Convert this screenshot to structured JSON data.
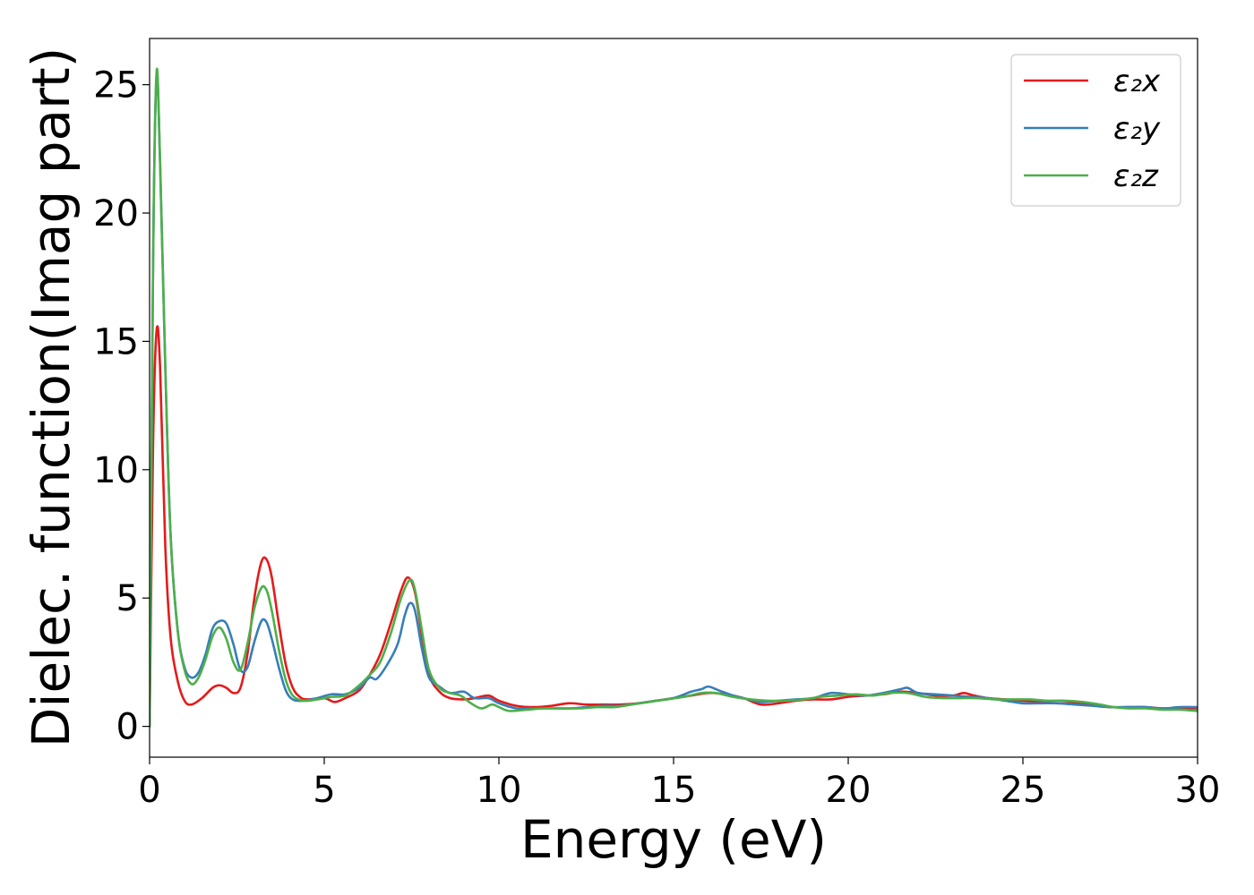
{
  "chart_data": {
    "type": "line",
    "title": "",
    "xlabel": "Energy (eV)",
    "ylabel": "Dielec. function(Imag part)",
    "xlim": [
      0,
      30
    ],
    "ylim": [
      -1.2,
      26.8
    ],
    "xticks": [
      0,
      5,
      10,
      15,
      20,
      25,
      30
    ],
    "yticks": [
      0,
      5,
      10,
      15,
      20,
      25
    ],
    "grid": false,
    "legend_position": "top-right",
    "series": [
      {
        "name": "ε₂x",
        "color": "#e41a1c",
        "points": [
          [
            0,
            0
          ],
          [
            0.1,
            11
          ],
          [
            0.2,
            15.4
          ],
          [
            0.3,
            14
          ],
          [
            0.45,
            7
          ],
          [
            0.6,
            3.5
          ],
          [
            0.8,
            1.8
          ],
          [
            1.0,
            1.0
          ],
          [
            1.2,
            0.85
          ],
          [
            1.5,
            1.1
          ],
          [
            1.8,
            1.5
          ],
          [
            2.0,
            1.6
          ],
          [
            2.2,
            1.5
          ],
          [
            2.4,
            1.3
          ],
          [
            2.6,
            1.5
          ],
          [
            2.8,
            2.8
          ],
          [
            3.0,
            5.0
          ],
          [
            3.2,
            6.4
          ],
          [
            3.35,
            6.5
          ],
          [
            3.5,
            5.8
          ],
          [
            3.7,
            4.0
          ],
          [
            3.9,
            2.4
          ],
          [
            4.1,
            1.5
          ],
          [
            4.3,
            1.15
          ],
          [
            4.5,
            1.05
          ],
          [
            5.0,
            1.1
          ],
          [
            5.3,
            0.95
          ],
          [
            5.6,
            1.1
          ],
          [
            6.0,
            1.4
          ],
          [
            6.3,
            2.0
          ],
          [
            6.6,
            2.8
          ],
          [
            6.9,
            4.0
          ],
          [
            7.2,
            5.3
          ],
          [
            7.4,
            5.8
          ],
          [
            7.6,
            5.2
          ],
          [
            7.8,
            3.5
          ],
          [
            8.0,
            2.0
          ],
          [
            8.3,
            1.35
          ],
          [
            8.6,
            1.1
          ],
          [
            9.0,
            1.05
          ],
          [
            9.3,
            1.1
          ],
          [
            9.7,
            1.2
          ],
          [
            10.0,
            1.0
          ],
          [
            10.5,
            0.8
          ],
          [
            11.0,
            0.75
          ],
          [
            11.5,
            0.8
          ],
          [
            12.0,
            0.9
          ],
          [
            12.5,
            0.85
          ],
          [
            13.0,
            0.85
          ],
          [
            13.5,
            0.85
          ],
          [
            14.0,
            0.9
          ],
          [
            14.5,
            1.0
          ],
          [
            15.0,
            1.1
          ],
          [
            15.5,
            1.2
          ],
          [
            16.0,
            1.3
          ],
          [
            16.5,
            1.25
          ],
          [
            17.0,
            1.1
          ],
          [
            17.5,
            0.85
          ],
          [
            18.0,
            0.9
          ],
          [
            18.5,
            1.0
          ],
          [
            19.0,
            1.05
          ],
          [
            19.5,
            1.05
          ],
          [
            20.0,
            1.15
          ],
          [
            20.5,
            1.2
          ],
          [
            21.0,
            1.25
          ],
          [
            21.5,
            1.35
          ],
          [
            22.0,
            1.3
          ],
          [
            22.5,
            1.2
          ],
          [
            23.0,
            1.2
          ],
          [
            23.3,
            1.3
          ],
          [
            23.6,
            1.2
          ],
          [
            24.0,
            1.1
          ],
          [
            24.5,
            1.05
          ],
          [
            25.0,
            1.0
          ],
          [
            25.5,
            0.95
          ],
          [
            26.0,
            0.9
          ],
          [
            26.5,
            0.9
          ],
          [
            27.0,
            0.85
          ],
          [
            27.5,
            0.75
          ],
          [
            28.0,
            0.75
          ],
          [
            28.5,
            0.75
          ],
          [
            29.0,
            0.7
          ],
          [
            29.5,
            0.7
          ],
          [
            30.0,
            0.7
          ]
        ]
      },
      {
        "name": "ε₂y",
        "color": "#377eb8",
        "points": [
          [
            0,
            0
          ],
          [
            0.1,
            18
          ],
          [
            0.2,
            25.3
          ],
          [
            0.3,
            22
          ],
          [
            0.45,
            14
          ],
          [
            0.6,
            7.5
          ],
          [
            0.8,
            3.8
          ],
          [
            1.0,
            2.3
          ],
          [
            1.2,
            1.9
          ],
          [
            1.4,
            2.1
          ],
          [
            1.6,
            2.8
          ],
          [
            1.8,
            3.8
          ],
          [
            2.0,
            4.1
          ],
          [
            2.2,
            4.0
          ],
          [
            2.4,
            3.2
          ],
          [
            2.6,
            2.2
          ],
          [
            2.8,
            2.3
          ],
          [
            3.0,
            3.3
          ],
          [
            3.2,
            4.1
          ],
          [
            3.35,
            4.05
          ],
          [
            3.5,
            3.4
          ],
          [
            3.7,
            2.3
          ],
          [
            3.9,
            1.4
          ],
          [
            4.1,
            1.05
          ],
          [
            4.4,
            1.0
          ],
          [
            4.8,
            1.1
          ],
          [
            5.2,
            1.25
          ],
          [
            5.6,
            1.25
          ],
          [
            6.0,
            1.5
          ],
          [
            6.3,
            1.9
          ],
          [
            6.5,
            1.85
          ],
          [
            6.8,
            2.4
          ],
          [
            7.1,
            3.2
          ],
          [
            7.3,
            4.3
          ],
          [
            7.45,
            4.8
          ],
          [
            7.6,
            4.5
          ],
          [
            7.8,
            3.0
          ],
          [
            8.0,
            1.9
          ],
          [
            8.3,
            1.55
          ],
          [
            8.6,
            1.3
          ],
          [
            9.0,
            1.35
          ],
          [
            9.3,
            1.1
          ],
          [
            9.7,
            1.1
          ],
          [
            10.0,
            0.9
          ],
          [
            10.5,
            0.7
          ],
          [
            11.0,
            0.7
          ],
          [
            11.5,
            0.7
          ],
          [
            12.0,
            0.7
          ],
          [
            12.5,
            0.75
          ],
          [
            13.0,
            0.8
          ],
          [
            13.5,
            0.8
          ],
          [
            14.0,
            0.9
          ],
          [
            14.5,
            1.0
          ],
          [
            15.0,
            1.1
          ],
          [
            15.5,
            1.35
          ],
          [
            15.8,
            1.45
          ],
          [
            16.0,
            1.55
          ],
          [
            16.3,
            1.4
          ],
          [
            16.7,
            1.2
          ],
          [
            17.0,
            1.1
          ],
          [
            17.5,
            0.95
          ],
          [
            18.0,
            1.0
          ],
          [
            18.5,
            1.05
          ],
          [
            19.0,
            1.1
          ],
          [
            19.5,
            1.3
          ],
          [
            20.0,
            1.25
          ],
          [
            20.5,
            1.2
          ],
          [
            21.0,
            1.3
          ],
          [
            21.5,
            1.45
          ],
          [
            21.7,
            1.5
          ],
          [
            22.0,
            1.3
          ],
          [
            22.5,
            1.25
          ],
          [
            23.0,
            1.2
          ],
          [
            23.5,
            1.15
          ],
          [
            24.0,
            1.1
          ],
          [
            24.5,
            1.0
          ],
          [
            25.0,
            0.9
          ],
          [
            25.5,
            0.9
          ],
          [
            26.0,
            0.9
          ],
          [
            26.5,
            0.85
          ],
          [
            27.0,
            0.8
          ],
          [
            27.5,
            0.75
          ],
          [
            28.0,
            0.75
          ],
          [
            28.5,
            0.75
          ],
          [
            29.0,
            0.7
          ],
          [
            29.5,
            0.75
          ],
          [
            30.0,
            0.75
          ]
        ]
      },
      {
        "name": "ε₂z",
        "color": "#4daf4a",
        "points": [
          [
            0,
            0
          ],
          [
            0.1,
            18
          ],
          [
            0.2,
            25.5
          ],
          [
            0.3,
            22
          ],
          [
            0.45,
            14
          ],
          [
            0.6,
            7.5
          ],
          [
            0.8,
            3.8
          ],
          [
            1.0,
            2.2
          ],
          [
            1.2,
            1.65
          ],
          [
            1.4,
            1.9
          ],
          [
            1.6,
            2.6
          ],
          [
            1.8,
            3.5
          ],
          [
            2.0,
            3.85
          ],
          [
            2.2,
            3.4
          ],
          [
            2.4,
            2.5
          ],
          [
            2.6,
            2.2
          ],
          [
            2.8,
            3.2
          ],
          [
            3.0,
            4.6
          ],
          [
            3.2,
            5.4
          ],
          [
            3.35,
            5.3
          ],
          [
            3.5,
            4.5
          ],
          [
            3.7,
            3.0
          ],
          [
            3.9,
            1.8
          ],
          [
            4.1,
            1.2
          ],
          [
            4.4,
            1.0
          ],
          [
            4.8,
            1.05
          ],
          [
            5.2,
            1.15
          ],
          [
            5.6,
            1.2
          ],
          [
            6.0,
            1.6
          ],
          [
            6.3,
            2.0
          ],
          [
            6.6,
            2.5
          ],
          [
            6.9,
            3.6
          ],
          [
            7.2,
            5.0
          ],
          [
            7.45,
            5.7
          ],
          [
            7.6,
            5.3
          ],
          [
            7.8,
            3.7
          ],
          [
            8.0,
            2.2
          ],
          [
            8.3,
            1.5
          ],
          [
            8.6,
            1.3
          ],
          [
            8.9,
            1.2
          ],
          [
            9.2,
            0.9
          ],
          [
            9.5,
            0.7
          ],
          [
            9.8,
            0.85
          ],
          [
            10.0,
            0.75
          ],
          [
            10.3,
            0.6
          ],
          [
            10.8,
            0.65
          ],
          [
            11.3,
            0.7
          ],
          [
            11.8,
            0.7
          ],
          [
            12.3,
            0.7
          ],
          [
            12.8,
            0.75
          ],
          [
            13.3,
            0.75
          ],
          [
            13.8,
            0.85
          ],
          [
            14.3,
            0.95
          ],
          [
            14.8,
            1.05
          ],
          [
            15.3,
            1.15
          ],
          [
            15.8,
            1.3
          ],
          [
            16.2,
            1.3
          ],
          [
            16.7,
            1.15
          ],
          [
            17.2,
            1.05
          ],
          [
            17.7,
            1.0
          ],
          [
            18.2,
            1.0
          ],
          [
            18.7,
            1.05
          ],
          [
            19.2,
            1.15
          ],
          [
            19.7,
            1.2
          ],
          [
            20.2,
            1.25
          ],
          [
            20.7,
            1.2
          ],
          [
            21.2,
            1.3
          ],
          [
            21.7,
            1.3
          ],
          [
            22.2,
            1.15
          ],
          [
            22.7,
            1.1
          ],
          [
            23.2,
            1.1
          ],
          [
            23.7,
            1.1
          ],
          [
            24.2,
            1.05
          ],
          [
            24.7,
            1.05
          ],
          [
            25.2,
            1.05
          ],
          [
            25.7,
            1.0
          ],
          [
            26.2,
            1.0
          ],
          [
            26.7,
            0.95
          ],
          [
            27.2,
            0.85
          ],
          [
            27.6,
            0.75
          ],
          [
            28.0,
            0.7
          ],
          [
            28.5,
            0.7
          ],
          [
            29.0,
            0.65
          ],
          [
            29.5,
            0.65
          ],
          [
            30.0,
            0.6
          ]
        ]
      }
    ]
  }
}
